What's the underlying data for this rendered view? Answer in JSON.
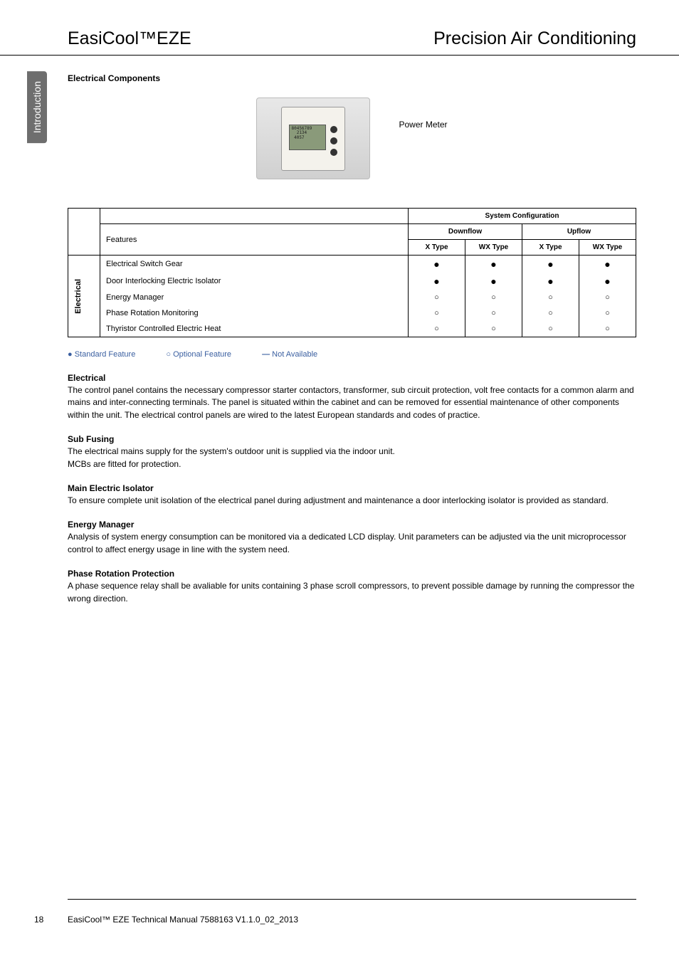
{
  "header": {
    "left": "EasiCool™EZE",
    "right": "Precision Air Conditioning"
  },
  "side_tab": "Introduction",
  "section_heading": "Electrical Components",
  "image": {
    "caption": "Power Meter",
    "screen_lines": "80456789\n  2134\n 4057"
  },
  "table": {
    "syscfg": "System Configuration",
    "features_label": "Features",
    "downflow": "Downflow",
    "upflow": "Upflow",
    "xtype": "X Type",
    "wxtype": "WX Type",
    "category": "Electrical",
    "rows": [
      {
        "label": "Electrical Switch Gear",
        "v": [
          "●",
          "●",
          "●",
          "●"
        ]
      },
      {
        "label": "Door Interlocking Electric Isolator",
        "v": [
          "●",
          "●",
          "●",
          "●"
        ]
      },
      {
        "label": "Energy Manager",
        "v": [
          "○",
          "○",
          "○",
          "○"
        ]
      },
      {
        "label": "Phase Rotation Monitoring",
        "v": [
          "○",
          "○",
          "○",
          "○"
        ]
      },
      {
        "label": "Thyristor Controlled Electric Heat",
        "v": [
          "○",
          "○",
          "○",
          "○"
        ]
      }
    ]
  },
  "legend": {
    "standard": "Standard Feature",
    "optional": "Optional Feature",
    "na": "Not Available"
  },
  "sections": [
    {
      "heading": "Electrical",
      "text": "The control panel contains the necessary compressor starter contactors, transformer, sub circuit protection, volt free contacts for a common alarm and mains and inter-connecting terminals. The panel is situated within the cabinet and can be removed for essential maintenance of other components within the unit. The electrical control panels are wired to the latest European standards and codes of practice."
    },
    {
      "heading": "Sub Fusing",
      "text": "The electrical mains supply for the system's outdoor unit is supplied via the indoor unit.\nMCBs are fitted for protection."
    },
    {
      "heading": "Main Electric Isolator",
      "text": "To ensure complete unit isolation of the electrical panel during adjustment and maintenance a door interlocking isolator is provided as standard."
    },
    {
      "heading": "Energy Manager",
      "text": "Analysis of system energy consumption can be monitored via a dedicated LCD display. Unit parameters can be adjusted via the unit microprocessor control to affect energy usage in line with the system need."
    },
    {
      "heading": "Phase Rotation Protection",
      "text": "A phase sequence relay shall be avaliable for units containing 3 phase scroll compressors, to prevent possible damage by running the compressor the wrong direction."
    }
  ],
  "footer": {
    "page": "18",
    "text": "EasiCool™ EZE Technical Manual 7588163 V1.1.0_02_2013"
  },
  "colors": {
    "legend": "#3a5fa0",
    "tab_bg": "#6e6e6e"
  }
}
